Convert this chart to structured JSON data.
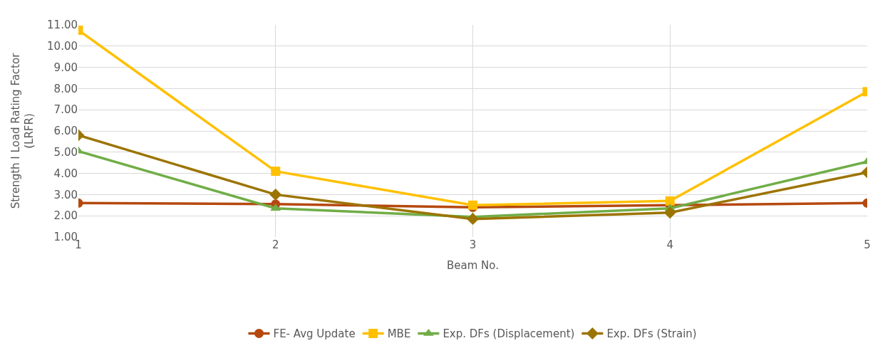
{
  "chart_data": {
    "type": "line",
    "xlabel": "Beam No.",
    "ylabel": "Strength I Load Rating Factor\n(LRFR)",
    "x": [
      1,
      2,
      3,
      4,
      5
    ],
    "xlim": [
      1,
      5
    ],
    "xticks": [
      1,
      2,
      3,
      4,
      5
    ],
    "ylim": [
      1,
      11
    ],
    "yticks": [
      {
        "value": 1,
        "label": "1.00"
      },
      {
        "value": 2,
        "label": "2.00"
      },
      {
        "value": 3,
        "label": "3.00"
      },
      {
        "value": 4,
        "label": "4.00"
      },
      {
        "value": 5,
        "label": "5.00"
      },
      {
        "value": 6,
        "label": "6.00"
      },
      {
        "value": 7,
        "label": "7.00"
      },
      {
        "value": 8,
        "label": "8.00"
      },
      {
        "value": 9,
        "label": "9.00"
      },
      {
        "value": 10,
        "label": "10.00"
      },
      {
        "value": 11,
        "label": "11.00"
      }
    ],
    "grid": true,
    "legend": "bottom",
    "line_style": "solid",
    "series": [
      {
        "name": "FE- Avg Update",
        "color": "#b5480f",
        "marker": "circle",
        "values": [
          2.6,
          2.55,
          2.4,
          2.5,
          2.6
        ]
      },
      {
        "name": "MBE",
        "color": "#ffc000",
        "marker": "square",
        "values": [
          10.75,
          4.1,
          2.5,
          2.7,
          7.85
        ]
      },
      {
        "name": "Exp. DFs (Displacement)",
        "color": "#70ad47",
        "marker": "triangle",
        "values": [
          5.05,
          2.35,
          1.95,
          2.35,
          4.55
        ]
      },
      {
        "name": "Exp. DFs (Strain)",
        "color": "#9c7400",
        "marker": "diamond",
        "values": [
          5.8,
          3.0,
          1.85,
          2.15,
          4.05
        ]
      }
    ]
  }
}
